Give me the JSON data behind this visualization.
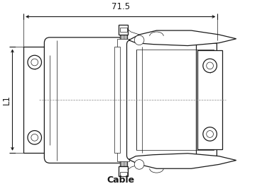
{
  "background_color": "#ffffff",
  "line_color": "#1a1a1a",
  "label_71_5": "71.5",
  "label_L1": "L1",
  "label_cable": "Cable",
  "figsize": [
    3.76,
    2.77
  ],
  "dpi": 100
}
